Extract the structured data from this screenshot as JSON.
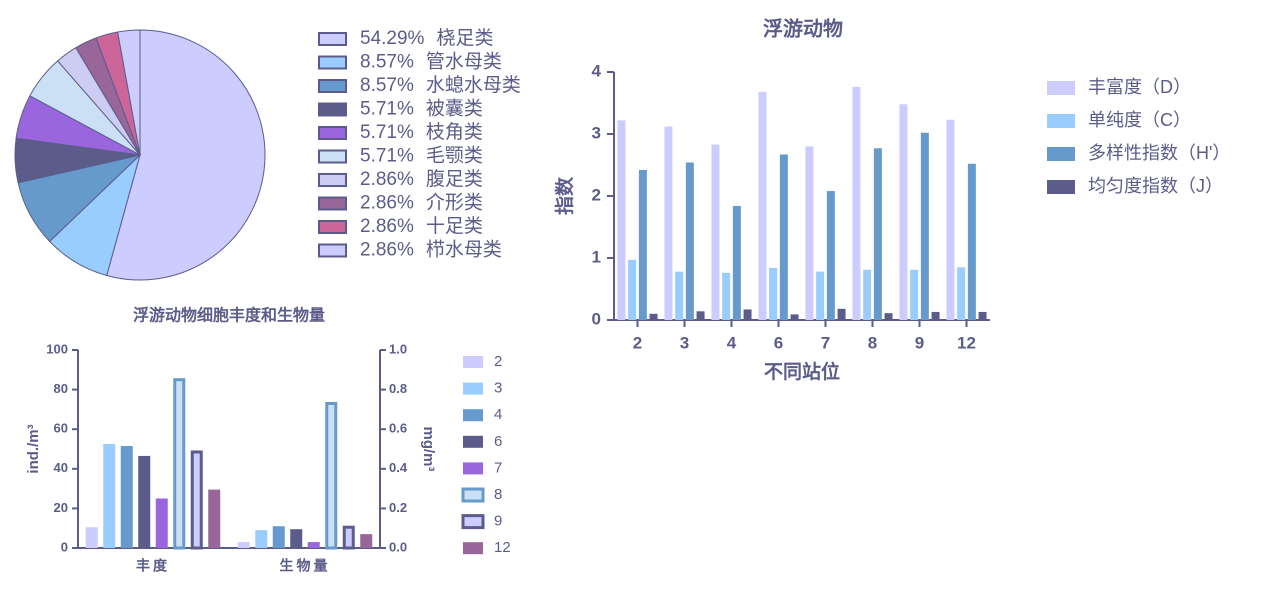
{
  "chart_data": [
    {
      "type": "pie",
      "categories": [
        "桡足类",
        "管水母类",
        "水螅水母类",
        "被囊类",
        "枝角类",
        "毛颚类",
        "腹足类",
        "介形类",
        "十足类",
        "栉水母类"
      ],
      "values": [
        54.29,
        8.57,
        8.57,
        5.71,
        5.71,
        5.71,
        2.86,
        2.86,
        2.86,
        2.86
      ],
      "value_labels": [
        "54.29%",
        "8.57%",
        "8.57%",
        "5.71%",
        "5.71%",
        "5.71%",
        "2.86%",
        "2.86%",
        "2.86%",
        "2.86%"
      ],
      "colors": [
        "#ccccff",
        "#99ccff",
        "#6699cc",
        "#5c5c8a",
        "#9966dd",
        "#cce0f5",
        "#ccccf5",
        "#996699",
        "#cc6699",
        "#ccccff"
      ]
    },
    {
      "type": "bar",
      "title": "浮游动物",
      "ylabel": "指数",
      "xlabel": "不同站位",
      "categories": [
        "2",
        "3",
        "4",
        "6",
        "7",
        "8",
        "9",
        "12"
      ],
      "ylim": [
        0,
        4
      ],
      "yticks": [
        0,
        1,
        2,
        3,
        4
      ],
      "series": [
        {
          "name": "丰富度（D）",
          "color": "#ccccff",
          "values": [
            3.22,
            3.12,
            2.83,
            3.68,
            2.8,
            3.76,
            3.48,
            3.23
          ]
        },
        {
          "name": "单纯度（C）",
          "color": "#99ccff",
          "values": [
            0.97,
            0.78,
            0.76,
            0.84,
            0.78,
            0.81,
            0.81,
            0.85
          ]
        },
        {
          "name": "多样性指数（H'）",
          "color": "#6699cc",
          "values": [
            2.42,
            2.54,
            1.84,
            2.67,
            2.08,
            2.77,
            3.02,
            2.52
          ]
        },
        {
          "name": "均匀度指数（J）",
          "color": "#5c5c8a",
          "values": [
            0.1,
            0.14,
            0.17,
            0.09,
            0.18,
            0.11,
            0.13,
            0.13
          ]
        }
      ]
    },
    {
      "type": "bar",
      "title": "浮游动物细胞丰度和生物量",
      "ylabel": "ind./m³",
      "y2label": "mg/m³",
      "categories": [
        "丰度",
        "生物量"
      ],
      "category_axis": [
        "y",
        "y2"
      ],
      "ylim": [
        0,
        100
      ],
      "yticks": [
        0,
        20,
        40,
        60,
        80,
        100
      ],
      "y2lim": [
        0,
        1
      ],
      "y2ticks": [
        {
          "value": 0,
          "label": "0.0"
        },
        0.2,
        0.4,
        0.6,
        0.8,
        {
          "value": 1,
          "label": "1.0"
        }
      ],
      "series": [
        {
          "name": "2",
          "color": "#ccccff",
          "values": [
            10.5,
            0.03
          ]
        },
        {
          "name": "3",
          "color": "#99ccff",
          "values": [
            52.5,
            0.09
          ]
        },
        {
          "name": "4",
          "color": "#6699cc",
          "values": [
            51.5,
            0.11
          ]
        },
        {
          "name": "6",
          "color": "#5c5c8a",
          "values": [
            46.5,
            0.095
          ]
        },
        {
          "name": "7",
          "color": "#9966dd",
          "values": [
            25,
            0.03
          ]
        },
        {
          "name": "8",
          "color": "#cce0f5",
          "edgecolor": "#6699cc",
          "values": [
            85,
            0.73
          ]
        },
        {
          "name": "9",
          "color": "#ccccff",
          "edgecolor": "#5c5c8a",
          "values": [
            48.5,
            0.105
          ]
        },
        {
          "name": "12",
          "color": "#996699",
          "values": [
            29.5,
            0.07
          ]
        }
      ]
    }
  ]
}
